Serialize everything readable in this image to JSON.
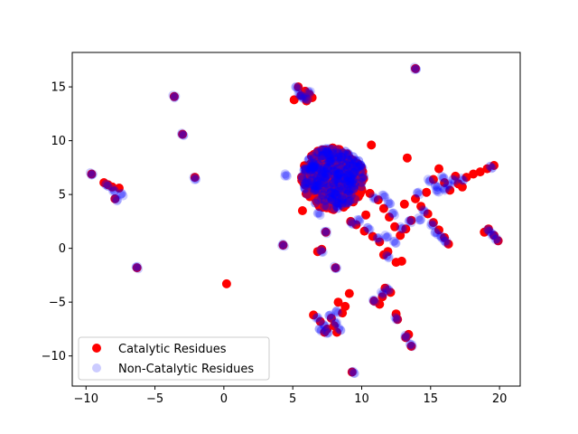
{
  "chart_data": {
    "type": "scatter",
    "title": "",
    "xlabel": "",
    "ylabel": "",
    "xlim": [
      -11,
      21.5
    ],
    "ylim": [
      -12.8,
      18.2
    ],
    "xticks": [
      -10,
      -5,
      0,
      5,
      10,
      15,
      20
    ],
    "yticks": [
      -10,
      -5,
      0,
      5,
      10,
      15
    ],
    "grid": false,
    "legend_position": "lower-left",
    "series": [
      {
        "name": "Catalytic Residues",
        "color": "#ff0000",
        "opacity": 1.0,
        "points": [
          [
            -9.6,
            6.9
          ],
          [
            -8.7,
            6.1
          ],
          [
            -8.4,
            5.9
          ],
          [
            -8.1,
            5.7
          ],
          [
            -7.6,
            5.6
          ],
          [
            -7.9,
            4.6
          ],
          [
            -6.3,
            -1.8
          ],
          [
            -3.6,
            14.1
          ],
          [
            -3.0,
            10.6
          ],
          [
            -2.1,
            6.6
          ],
          [
            0.2,
            -3.3
          ],
          [
            4.3,
            0.3
          ],
          [
            5.1,
            13.8
          ],
          [
            5.6,
            14.2
          ],
          [
            6.2,
            14.3
          ],
          [
            5.9,
            14.6
          ],
          [
            5.4,
            15.0
          ],
          [
            6.4,
            14.0
          ],
          [
            6.0,
            13.7
          ],
          [
            5.7,
            3.5
          ],
          [
            6.8,
            -0.3
          ],
          [
            7.1,
            -0.1
          ],
          [
            7.4,
            1.5
          ],
          [
            8.1,
            -1.8
          ],
          [
            9.3,
            -11.5
          ],
          [
            10.7,
            9.6
          ],
          [
            13.3,
            8.4
          ],
          [
            13.9,
            16.7
          ],
          [
            6.5,
            -6.2
          ],
          [
            7.0,
            -6.8
          ],
          [
            7.5,
            -7.5
          ],
          [
            7.8,
            -6.5
          ],
          [
            8.2,
            -7.8
          ],
          [
            8.6,
            -6.0
          ],
          [
            8.8,
            -5.4
          ],
          [
            8.3,
            -5.0
          ],
          [
            7.3,
            -7.8
          ],
          [
            8.0,
            -7.2
          ],
          [
            9.1,
            -4.2
          ],
          [
            10.9,
            -4.9
          ],
          [
            11.3,
            -5.2
          ],
          [
            11.7,
            -3.7
          ],
          [
            12.1,
            -4.1
          ],
          [
            11.5,
            -4.5
          ],
          [
            12.5,
            -6.1
          ],
          [
            12.6,
            -6.6
          ],
          [
            13.2,
            -8.3
          ],
          [
            13.6,
            -9.1
          ],
          [
            13.4,
            -8.0
          ],
          [
            9.2,
            2.5
          ],
          [
            9.6,
            2.2
          ],
          [
            10.3,
            3.1
          ],
          [
            10.6,
            5.1
          ],
          [
            11.2,
            4.5
          ],
          [
            11.6,
            3.7
          ],
          [
            12.0,
            2.9
          ],
          [
            12.4,
            2.0
          ],
          [
            10.2,
            1.6
          ],
          [
            10.8,
            1.1
          ],
          [
            11.3,
            0.6
          ],
          [
            11.9,
            -0.3
          ],
          [
            12.5,
            -1.3
          ],
          [
            12.8,
            1.2
          ],
          [
            13.2,
            1.8
          ],
          [
            13.6,
            2.6
          ],
          [
            13.9,
            4.6
          ],
          [
            14.3,
            3.9
          ],
          [
            14.8,
            3.2
          ],
          [
            15.2,
            2.4
          ],
          [
            15.6,
            1.7
          ],
          [
            16.0,
            1.0
          ],
          [
            16.3,
            0.4
          ],
          [
            14.7,
            5.2
          ],
          [
            15.2,
            6.4
          ],
          [
            15.6,
            7.4
          ],
          [
            16.0,
            6.1
          ],
          [
            16.4,
            5.4
          ],
          [
            17.0,
            6.0
          ],
          [
            17.6,
            6.6
          ],
          [
            18.1,
            6.9
          ],
          [
            18.6,
            7.1
          ],
          [
            19.1,
            7.4
          ],
          [
            19.6,
            7.7
          ],
          [
            16.8,
            6.7
          ],
          [
            17.3,
            5.7
          ],
          [
            19.2,
            1.8
          ],
          [
            19.6,
            1.2
          ],
          [
            19.9,
            0.7
          ],
          [
            18.9,
            1.5
          ],
          [
            12.9,
            -1.2
          ],
          [
            11.6,
            -0.6
          ],
          [
            13.1,
            4.1
          ]
        ],
        "dense_region": {
          "x_range": [
            5.6,
            10.2
          ],
          "y_range": [
            3.6,
            9.4
          ]
        }
      },
      {
        "name": "Non-Catalytic Residues",
        "color": "#0000ff",
        "opacity": 0.2,
        "points": [
          [
            -9.6,
            6.9
          ],
          [
            -8.5,
            5.9
          ],
          [
            -8.0,
            5.4
          ],
          [
            -7.4,
            5.0
          ],
          [
            -7.8,
            4.5
          ],
          [
            -6.3,
            -1.8
          ],
          [
            -3.6,
            14.1
          ],
          [
            -3.0,
            10.6
          ],
          [
            -2.1,
            6.5
          ],
          [
            4.3,
            0.3
          ],
          [
            5.3,
            14.9
          ],
          [
            5.7,
            14.0
          ],
          [
            6.2,
            14.5
          ],
          [
            6.0,
            13.9
          ],
          [
            5.5,
            14.3
          ],
          [
            4.5,
            6.8
          ],
          [
            6.9,
            3.2
          ],
          [
            7.1,
            -0.3
          ],
          [
            7.4,
            1.5
          ],
          [
            8.1,
            -1.8
          ],
          [
            9.4,
            -11.5
          ],
          [
            13.9,
            16.7
          ],
          [
            6.8,
            -6.5
          ],
          [
            7.3,
            -7.2
          ],
          [
            7.7,
            -6.3
          ],
          [
            8.1,
            -6.9
          ],
          [
            8.4,
            -7.5
          ],
          [
            7.5,
            -7.8
          ],
          [
            8.2,
            -5.9
          ],
          [
            7.0,
            -7.6
          ],
          [
            10.9,
            -4.9
          ],
          [
            11.5,
            -4.2
          ],
          [
            11.9,
            -3.8
          ],
          [
            12.5,
            -6.5
          ],
          [
            13.2,
            -8.2
          ],
          [
            13.6,
            -9.0
          ],
          [
            9.3,
            2.3
          ],
          [
            9.8,
            2.6
          ],
          [
            10.9,
            4.7
          ],
          [
            11.6,
            4.9
          ],
          [
            12.0,
            4.2
          ],
          [
            12.3,
            3.2
          ],
          [
            10.5,
            1.8
          ],
          [
            11.2,
            0.9
          ],
          [
            11.8,
            1.1
          ],
          [
            12.4,
            0.6
          ],
          [
            12.9,
            1.9
          ],
          [
            13.5,
            2.5
          ],
          [
            11.9,
            -0.8
          ],
          [
            14.1,
            5.1
          ],
          [
            14.9,
            6.3
          ],
          [
            15.4,
            5.8
          ],
          [
            15.9,
            6.6
          ],
          [
            16.3,
            5.9
          ],
          [
            16.7,
            6.3
          ],
          [
            15.5,
            5.3
          ],
          [
            16.0,
            5.5
          ],
          [
            17.3,
            6.4
          ],
          [
            14.5,
            3.5
          ],
          [
            15.1,
            2.2
          ],
          [
            15.4,
            1.4
          ],
          [
            15.8,
            1.0
          ],
          [
            16.1,
            0.6
          ],
          [
            14.2,
            2.7
          ],
          [
            19.2,
            1.7
          ],
          [
            19.5,
            1.3
          ],
          [
            19.8,
            0.8
          ],
          [
            19.4,
            7.5
          ]
        ],
        "dense_region": {
          "x_range": [
            5.6,
            10.2
          ],
          "y_range": [
            3.6,
            9.4
          ]
        }
      }
    ]
  }
}
